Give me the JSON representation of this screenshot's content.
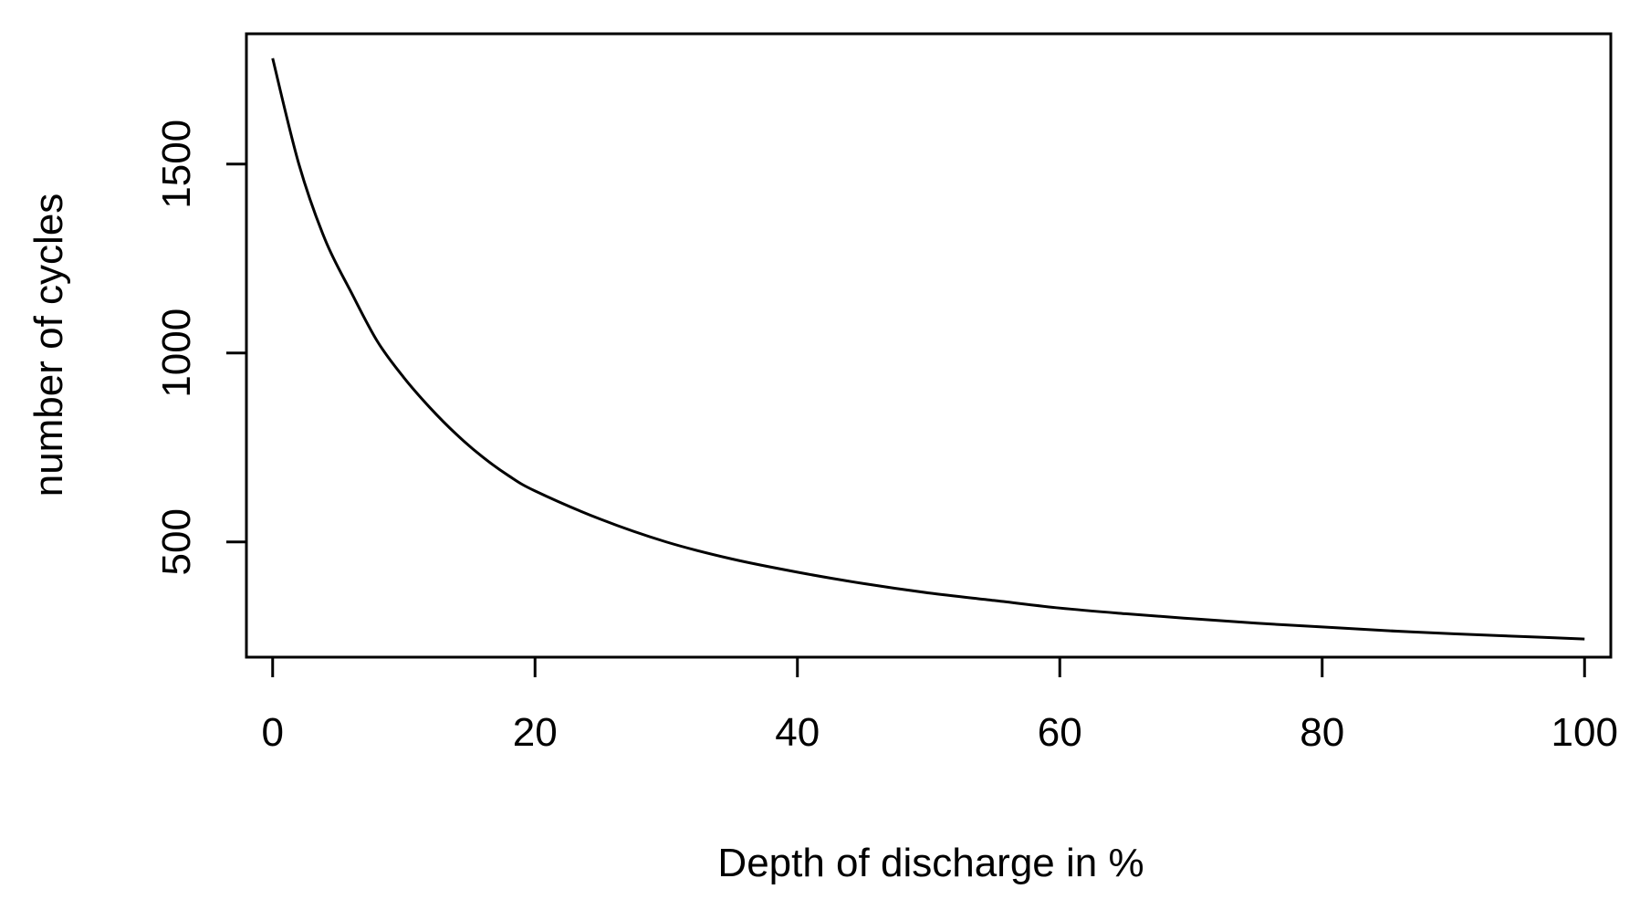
{
  "chart_data": {
    "type": "line",
    "title": "",
    "xlabel": "Depth of discharge in %",
    "ylabel": "number of cycles",
    "xlim": [
      -2,
      102
    ],
    "ylim": [
      195,
      1845
    ],
    "x_ticks": [
      0,
      20,
      40,
      60,
      80,
      100
    ],
    "x_tick_labels": [
      "0",
      "20",
      "40",
      "60",
      "80",
      "100"
    ],
    "y_ticks": [
      500,
      1000,
      1500
    ],
    "y_tick_labels": [
      "500",
      "1000",
      "1500"
    ],
    "grid": false,
    "legend": "none",
    "line_color": "#000000",
    "series": [
      {
        "x": [
          0,
          2,
          4,
          6,
          8,
          10,
          12,
          14,
          16,
          18,
          20,
          25,
          30,
          35,
          40,
          45,
          50,
          55,
          60,
          65,
          70,
          75,
          80,
          85,
          90,
          95,
          100
        ],
        "values": [
          1780,
          1500,
          1300,
          1160,
          1030,
          935,
          855,
          785,
          725,
          675,
          635,
          560,
          500,
          455,
          420,
          390,
          365,
          345,
          325,
          310,
          297,
          285,
          275,
          265,
          257,
          250,
          243
        ]
      }
    ]
  }
}
